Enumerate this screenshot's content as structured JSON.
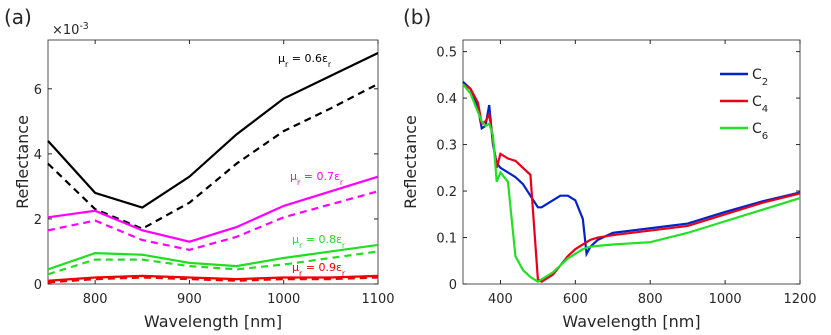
{
  "chart_data": [
    {
      "type": "line",
      "panel_label": "(a)",
      "exponent_label": [
        "×10",
        "-3"
      ],
      "xlabel": "Wavelength [nm]",
      "ylabel": "Reflectance",
      "x": [
        750,
        800,
        850,
        900,
        950,
        1000,
        1050,
        1100
      ],
      "xlim": [
        750,
        1100
      ],
      "xticks": [
        800,
        900,
        1000,
        1100
      ],
      "ylim": [
        0,
        7.5
      ],
      "yticks": [
        0,
        2,
        4,
        6
      ],
      "series": [
        {
          "color": "#000000",
          "style": "solid",
          "values": [
            4.4,
            2.8,
            2.35,
            3.3,
            4.6,
            5.7,
            6.4,
            7.1
          ]
        },
        {
          "color": "#000000",
          "style": "dashed",
          "values": [
            3.7,
            2.3,
            1.7,
            2.5,
            3.7,
            4.7,
            5.4,
            6.15
          ]
        },
        {
          "color": "#ff00ff",
          "style": "solid",
          "values": [
            2.05,
            2.25,
            1.65,
            1.3,
            1.75,
            2.4,
            2.85,
            3.3
          ]
        },
        {
          "color": "#ff00ff",
          "style": "dashed",
          "values": [
            1.65,
            1.95,
            1.35,
            1.05,
            1.45,
            2.05,
            2.45,
            2.85
          ]
        },
        {
          "color": "#22dd22",
          "style": "solid",
          "values": [
            0.45,
            0.95,
            0.9,
            0.65,
            0.55,
            0.8,
            1.0,
            1.2
          ]
        },
        {
          "color": "#22dd22",
          "style": "dashed",
          "values": [
            0.3,
            0.75,
            0.75,
            0.55,
            0.45,
            0.6,
            0.8,
            1.0
          ]
        },
        {
          "color": "#ee0000",
          "style": "solid",
          "values": [
            0.1,
            0.2,
            0.25,
            0.2,
            0.15,
            0.2,
            0.2,
            0.25
          ]
        },
        {
          "color": "#ee0000",
          "style": "dashed",
          "values": [
            0.05,
            0.15,
            0.2,
            0.15,
            0.1,
            0.15,
            0.15,
            0.2
          ]
        }
      ],
      "annotations": [
        {
          "text": [
            "μ",
            "r",
            " = 0.6ε",
            "r"
          ],
          "color": "#000000"
        },
        {
          "text": [
            "μ",
            "r",
            " = 0.7ε",
            "r"
          ],
          "color": "#ff00ff"
        },
        {
          "text": [
            "μ",
            "r",
            " = 0.8ε",
            "r"
          ],
          "color": "#22dd22"
        },
        {
          "text": [
            "μ",
            "r",
            " = 0.9ε",
            "r"
          ],
          "color": "#ee0000"
        }
      ]
    },
    {
      "type": "line",
      "panel_label": "(b)",
      "xlabel": "Wavelength [nm]",
      "ylabel": "Reflectance",
      "x": [
        300,
        320,
        340,
        350,
        360,
        370,
        380,
        390,
        400,
        420,
        440,
        460,
        480,
        500,
        510,
        520,
        540,
        560,
        580,
        600,
        620,
        630,
        640,
        660,
        700,
        800,
        900,
        1000,
        1100,
        1200
      ],
      "xlim": [
        300,
        1200
      ],
      "xticks": [
        400,
        600,
        800,
        1000,
        1200
      ],
      "ylim": [
        0,
        0.525
      ],
      "yticks": [
        0,
        0.1,
        0.2,
        0.3,
        0.4,
        0.5
      ],
      "legend": "upper right",
      "series": [
        {
          "name": [
            "C",
            "2"
          ],
          "color": "#0022cc",
          "values": [
            0.435,
            0.42,
            0.38,
            0.335,
            0.34,
            0.385,
            0.3,
            0.26,
            0.25,
            0.24,
            0.23,
            0.215,
            0.19,
            0.165,
            0.165,
            0.17,
            0.18,
            0.19,
            0.19,
            0.18,
            0.14,
            0.065,
            0.08,
            0.095,
            0.11,
            0.12,
            0.13,
            0.155,
            0.178,
            0.197
          ]
        },
        {
          "name": [
            "C",
            "4"
          ],
          "color": "#e8001a",
          "values": [
            0.43,
            0.42,
            0.39,
            0.345,
            0.35,
            0.365,
            0.31,
            0.25,
            0.28,
            0.27,
            0.265,
            0.25,
            0.235,
            0.01,
            0.005,
            0.01,
            0.02,
            0.04,
            0.06,
            0.075,
            0.085,
            0.09,
            0.095,
            0.1,
            0.105,
            0.115,
            0.125,
            0.15,
            0.175,
            0.195
          ]
        },
        {
          "name": [
            "C",
            "6"
          ],
          "color": "#22e022",
          "values": [
            0.43,
            0.41,
            0.37,
            0.35,
            0.34,
            0.345,
            0.32,
            0.22,
            0.24,
            0.22,
            0.06,
            0.03,
            0.015,
            0.005,
            0.01,
            0.015,
            0.025,
            0.04,
            0.055,
            0.065,
            0.075,
            0.078,
            0.08,
            0.082,
            0.085,
            0.09,
            0.11,
            0.135,
            0.16,
            0.185
          ]
        }
      ]
    }
  ]
}
